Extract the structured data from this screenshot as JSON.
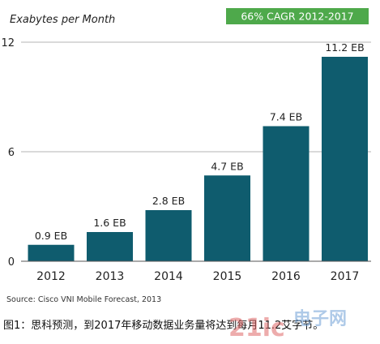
{
  "chart_data": {
    "type": "bar",
    "ylabel": "Exabytes per Month",
    "badge": "66% CAGR 2012-2017",
    "categories": [
      "2012",
      "2013",
      "2014",
      "2015",
      "2016",
      "2017"
    ],
    "values": [
      0.9,
      1.6,
      2.8,
      4.7,
      7.4,
      11.2
    ],
    "value_labels": [
      "0.9 EB",
      "1.6 EB",
      "2.8 EB",
      "4.7 EB",
      "7.4 EB",
      "11.2 EB"
    ],
    "ylim": [
      0,
      12
    ],
    "yticks": [
      0,
      6,
      12
    ],
    "grid": true,
    "legend": "none",
    "source": "Source: Cisco VNI Mobile Forecast, 2013"
  },
  "caption": "图1：思科预测，到2017年移动数据业务量将达到每月11.2艾字节。",
  "watermark": {
    "site": "21ic",
    "suffix": "电子网"
  },
  "colors": {
    "bar": "#0f5c6e",
    "badge": "#4ea94b",
    "grid": "#b5b5b5",
    "axis": "#555555"
  }
}
